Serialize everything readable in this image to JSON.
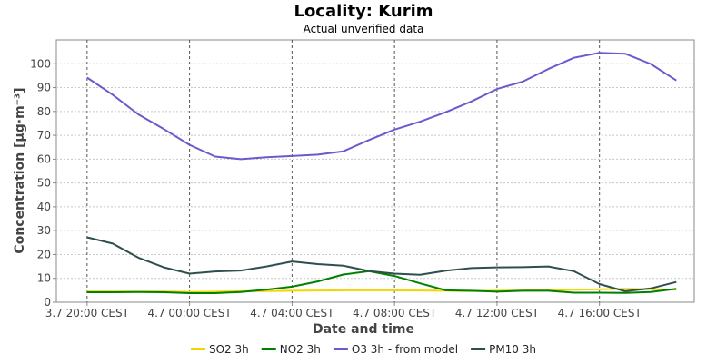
{
  "chart_data": {
    "type": "line",
    "title": "Locality: Kurim",
    "subtitle": "Actual unverified data",
    "xlabel": "Date and time",
    "ylabel": "Concentration [µg·m⁻³]",
    "ylim": [
      0,
      110
    ],
    "y_ticks": [
      0,
      10,
      20,
      30,
      40,
      50,
      60,
      70,
      80,
      90,
      100
    ],
    "x_ticks": [
      {
        "x": 0,
        "label": "3.7 20:00 CEST"
      },
      {
        "x": 4,
        "label": "4.7 00:00 CEST"
      },
      {
        "x": 8,
        "label": "4.7 04:00 CEST"
      },
      {
        "x": 12,
        "label": "4.7 08:00 CEST"
      },
      {
        "x": 16,
        "label": "4.7 12:00 CEST"
      },
      {
        "x": 20,
        "label": "4.7 16:00 CEST"
      }
    ],
    "xlim": [
      -1.2,
      23.7
    ],
    "x": [
      0,
      1,
      2,
      3,
      4,
      5,
      6,
      7,
      8,
      9,
      10,
      11,
      12,
      13,
      14,
      15,
      16,
      17,
      18,
      19,
      20,
      21,
      22,
      23
    ],
    "grid": true,
    "legend_position": "bottom",
    "series": [
      {
        "name": "SO2 3h",
        "color": "#f2d600",
        "values": [
          4.5,
          4.5,
          4.4,
          4.5,
          4.3,
          4.4,
          4.6,
          4.7,
          4.8,
          4.9,
          5.0,
          5.0,
          5.0,
          4.9,
          4.8,
          4.7,
          4.8,
          4.9,
          5.0,
          5.2,
          5.4,
          5.6,
          5.5,
          5.3
        ]
      },
      {
        "name": "NO2 3h",
        "color": "#008000",
        "values": [
          4.2,
          4.2,
          4.3,
          4.2,
          3.8,
          3.8,
          4.3,
          5.3,
          6.5,
          8.7,
          11.6,
          13.0,
          11.0,
          7.9,
          5.0,
          4.8,
          4.4,
          4.8,
          4.8,
          4.0,
          4.0,
          3.9,
          4.3,
          5.6
        ]
      },
      {
        "name": "O3 3h - from model",
        "color": "#6a5acd",
        "values": [
          94.2,
          87.0,
          78.8,
          72.6,
          66.0,
          61.1,
          60.0,
          60.8,
          61.3,
          61.9,
          63.3,
          68.0,
          72.4,
          75.7,
          79.7,
          84.2,
          89.4,
          92.5,
          97.8,
          102.5,
          104.6,
          104.2,
          99.9,
          93.0
        ]
      },
      {
        "name": "PM10 3h",
        "color": "#2f4f4f",
        "values": [
          27.2,
          24.6,
          18.7,
          14.6,
          12.0,
          12.9,
          13.3,
          15.0,
          17.1,
          16.0,
          15.3,
          13.1,
          12.0,
          11.5,
          13.2,
          14.3,
          14.6,
          14.7,
          15.0,
          13.0,
          7.6,
          4.6,
          5.8,
          8.5
        ]
      }
    ]
  }
}
